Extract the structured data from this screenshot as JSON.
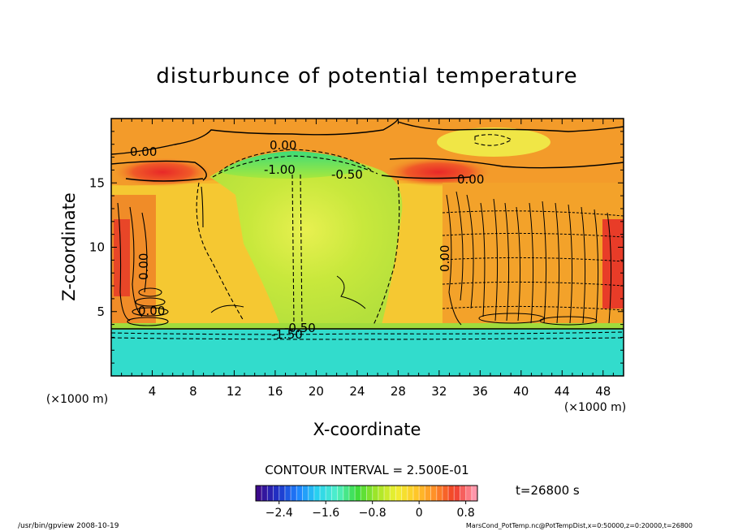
{
  "chart_data": {
    "type": "heatmap",
    "title": "disturbunce of potential temperature",
    "xlabel": "X-coordinate",
    "ylabel": "Z-coordinate",
    "x_unit": "(×1000 m)",
    "z_unit": "(×1000 m)",
    "xlim": [
      0,
      50
    ],
    "ylim": [
      0,
      20
    ],
    "x_ticks": [
      "4",
      "8",
      "12",
      "16",
      "20",
      "24",
      "28",
      "32",
      "36",
      "40",
      "44",
      "48"
    ],
    "y_ticks": [
      "5",
      "10",
      "15"
    ],
    "contour_interval_text": "CONTOUR INTERVAL = 2.500E-01",
    "contour_labels": [
      "0.00",
      "0.00",
      "0.00",
      "-1.00",
      "-0.50",
      "-0.50",
      "-1.50",
      "0.00",
      "0.00",
      "0.00"
    ],
    "colorbar": {
      "range": [
        -2.8,
        1.0
      ],
      "ticks": [
        "−2.4",
        "−1.6",
        "−0.8",
        "0",
        "0.8"
      ],
      "colors": [
        "#3c0a8c",
        "#1e32c8",
        "#1e82ff",
        "#28d2f0",
        "#50f0c8",
        "#3cdc3c",
        "#a0e628",
        "#f0f032",
        "#ffc828",
        "#ff8c28",
        "#f03c28",
        "#ff96aa"
      ]
    },
    "time_text": "t=26800 s",
    "footer_left": "/usr/bin/gpview   2008-10-19",
    "footer_right": "MarsCond_PotTemp.nc@PotTempDist,x=0:50000,z=0:20000,t=26800"
  }
}
